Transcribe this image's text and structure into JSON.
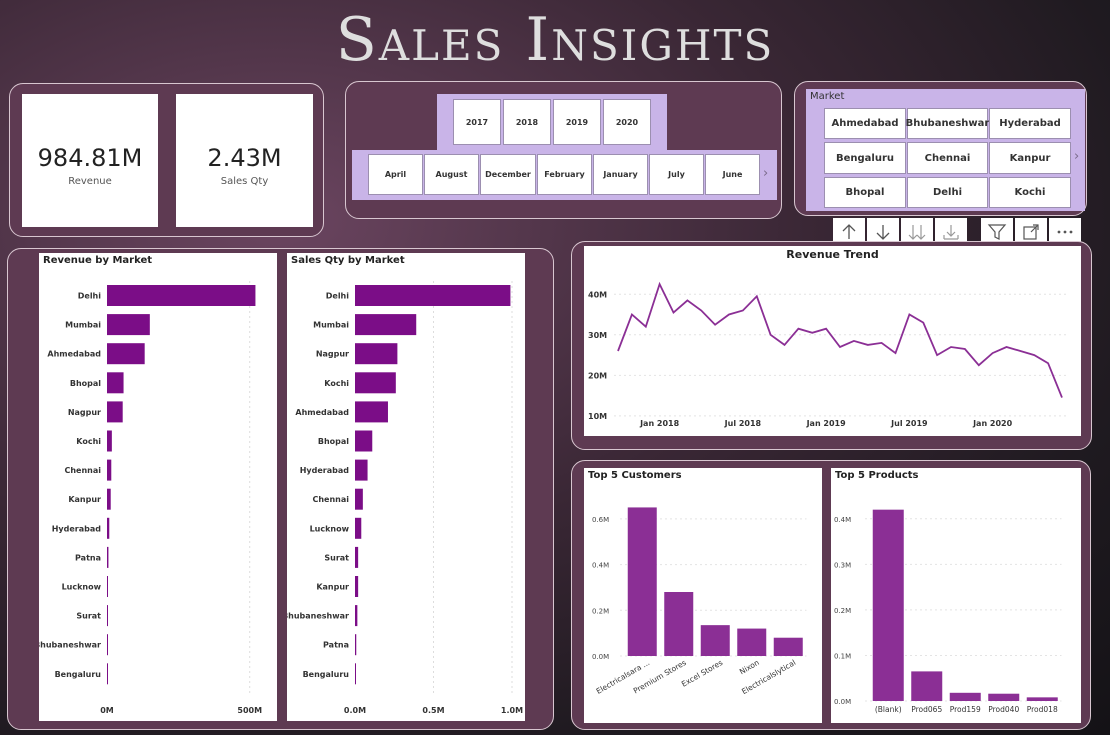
{
  "title": "Sales Insights",
  "kpis": [
    {
      "value": "984.81M",
      "label": "Revenue"
    },
    {
      "value": "2.43M",
      "label": "Sales Qty"
    }
  ],
  "year_slicer": [
    "2017",
    "2018",
    "2019",
    "2020"
  ],
  "month_slicer": [
    "April",
    "August",
    "December",
    "February",
    "January",
    "July",
    "June"
  ],
  "market_slicer": {
    "header": "Market",
    "items": [
      "Ahmedabad",
      "Bhubaneshwar",
      "Hyderabad",
      "Bengaluru",
      "Chennai",
      "Kanpur",
      "Bhopal",
      "Delhi",
      "Kochi"
    ]
  },
  "toolbar": {
    "sort_asc": "sort-ascending-icon",
    "sort_desc": "sort-descending-icon",
    "expand_all": "expand-all-icon",
    "drill": "drill-down-icon",
    "filter": "filter-icon",
    "focus": "focus-mode-icon",
    "more": "more-options-icon"
  },
  "colors": {
    "bar": "#7b0d87",
    "bar_light": "#8b2f95",
    "line": "#8b2f95"
  },
  "chart_data": [
    {
      "type": "bar",
      "title": "Revenue by Market",
      "orientation": "horizontal",
      "categories": [
        "Delhi",
        "Mumbai",
        "Ahmedabad",
        "Bhopal",
        "Nagpur",
        "Kochi",
        "Chennai",
        "Kanpur",
        "Hyderabad",
        "Patna",
        "Lucknow",
        "Surat",
        "Bhubaneshwar",
        "Bengaluru"
      ],
      "values": [
        520,
        150,
        132,
        58,
        55,
        17,
        15,
        13,
        8,
        5,
        3,
        2,
        1,
        0.5
      ],
      "xlim": [
        0,
        550
      ],
      "ticks": [
        {
          "v": 0,
          "label": "0M"
        },
        {
          "v": 500,
          "label": "500M"
        }
      ]
    },
    {
      "type": "bar",
      "title": "Sales Qty by Market",
      "orientation": "horizontal",
      "categories": [
        "Delhi",
        "Mumbai",
        "Nagpur",
        "Kochi",
        "Ahmedabad",
        "Bhopal",
        "Hyderabad",
        "Chennai",
        "Lucknow",
        "Surat",
        "Kanpur",
        "Bhubaneshwar",
        "Patna",
        "Bengaluru"
      ],
      "values": [
        0.99,
        0.39,
        0.27,
        0.26,
        0.21,
        0.11,
        0.08,
        0.05,
        0.04,
        0.02,
        0.02,
        0.015,
        0.008,
        0.005
      ],
      "xlim": [
        0,
        1.0
      ],
      "ticks": [
        {
          "v": 0,
          "label": "0.0M"
        },
        {
          "v": 0.5,
          "label": "0.5M"
        },
        {
          "v": 1.0,
          "label": "1.0M"
        }
      ]
    },
    {
      "type": "line",
      "title": "Revenue Trend",
      "x": [
        "2017-10",
        "2017-11",
        "2017-12",
        "2018-01",
        "2018-02",
        "2018-03",
        "2018-04",
        "2018-05",
        "2018-06",
        "2018-07",
        "2018-08",
        "2018-09",
        "2018-10",
        "2018-11",
        "2018-12",
        "2019-01",
        "2019-02",
        "2019-03",
        "2019-04",
        "2019-05",
        "2019-06",
        "2019-07",
        "2019-08",
        "2019-09",
        "2019-10",
        "2019-11",
        "2019-12",
        "2020-01",
        "2020-02",
        "2020-03",
        "2020-04",
        "2020-05",
        "2020-06"
      ],
      "values": [
        26,
        35,
        32,
        42.5,
        35.5,
        38.5,
        36,
        32.5,
        35,
        36,
        39.5,
        30,
        27.5,
        31.5,
        30.5,
        31.5,
        27,
        28.5,
        27.5,
        28,
        25.5,
        35,
        33,
        25,
        27,
        26.5,
        22.5,
        25.5,
        27,
        26,
        25,
        23,
        14.5
      ],
      "ylim": [
        8,
        45
      ],
      "y_ticks": [
        {
          "v": 10,
          "label": "10M"
        },
        {
          "v": 20,
          "label": "20M"
        },
        {
          "v": 30,
          "label": "30M"
        },
        {
          "v": 40,
          "label": "40M"
        }
      ],
      "x_ticks": [
        {
          "i": 3,
          "label": "Jan 2018"
        },
        {
          "i": 9,
          "label": "Jul 2018"
        },
        {
          "i": 15,
          "label": "Jan 2019"
        },
        {
          "i": 21,
          "label": "Jul 2019"
        },
        {
          "i": 27,
          "label": "Jan 2020"
        }
      ]
    },
    {
      "type": "bar",
      "title": "Top 5 Customers",
      "categories": [
        "Electricalsara ...",
        "Premium Stores",
        "Excel Stores",
        "Nixon",
        "Electricalslytical"
      ],
      "values": [
        0.65,
        0.28,
        0.135,
        0.12,
        0.08
      ],
      "ylim": [
        0,
        0.7
      ],
      "y_ticks": [
        {
          "v": 0,
          "label": "0.0M"
        },
        {
          "v": 0.2,
          "label": "0.2M"
        },
        {
          "v": 0.4,
          "label": "0.4M"
        },
        {
          "v": 0.6,
          "label": "0.6M"
        }
      ]
    },
    {
      "type": "bar",
      "title": "Top 5 Products",
      "categories": [
        "(Blank)",
        "Prod065",
        "Prod159",
        "Prod040",
        "Prod018"
      ],
      "values": [
        0.42,
        0.065,
        0.018,
        0.016,
        0.008
      ],
      "ylim": [
        0,
        0.45
      ],
      "y_ticks": [
        {
          "v": 0,
          "label": "0.0M"
        },
        {
          "v": 0.1,
          "label": "0.1M"
        },
        {
          "v": 0.2,
          "label": "0.2M"
        },
        {
          "v": 0.3,
          "label": "0.3M"
        },
        {
          "v": 0.4,
          "label": "0.4M"
        }
      ]
    }
  ]
}
